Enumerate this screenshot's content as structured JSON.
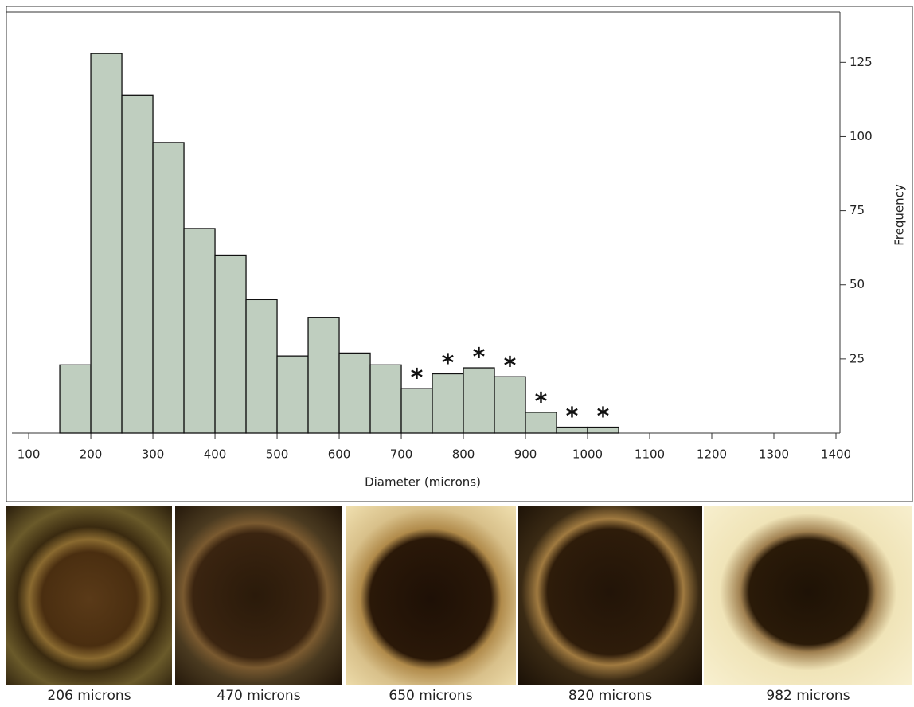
{
  "chart_data": {
    "type": "histogram",
    "xlabel": "Diameter (microns)",
    "ylabel": "Frequency",
    "bins": [
      150,
      200,
      250,
      300,
      350,
      400,
      450,
      500,
      550,
      600,
      650,
      700,
      750,
      800,
      850,
      900,
      950,
      1000,
      1050
    ],
    "values": [
      23,
      128,
      114,
      98,
      69,
      60,
      45,
      26,
      39,
      27,
      23,
      15,
      20,
      22,
      19,
      7,
      2,
      2
    ],
    "bar_labels": [
      null,
      null,
      null,
      null,
      null,
      null,
      null,
      null,
      null,
      null,
      null,
      "*",
      "*",
      "*",
      "*",
      "*",
      "*",
      "*"
    ],
    "color": "#bfcebf",
    "xlim": [
      73,
      1400
    ],
    "xticks": [
      100,
      200,
      300,
      400,
      500,
      600,
      700,
      800,
      900,
      1000,
      1100,
      1200,
      1300,
      1400
    ],
    "ylim": [
      0,
      142
    ],
    "yticks": [
      25,
      50,
      75,
      100,
      125
    ]
  },
  "photos": [
    {
      "caption": "206 microns"
    },
    {
      "caption": "470 microns"
    },
    {
      "caption": "650 microns"
    },
    {
      "caption": "820 microns"
    },
    {
      "caption": "982 microns"
    }
  ]
}
